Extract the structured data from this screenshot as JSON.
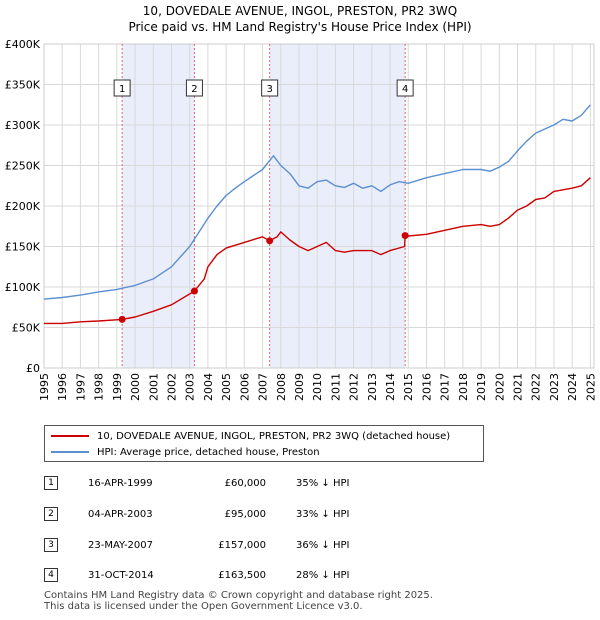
{
  "title_line1": "10, DOVEDALE AVENUE, INGOL, PRESTON, PR2 3WQ",
  "title_line2": "Price paid vs. HM Land Registry's House Price Index (HPI)",
  "legend": {
    "property": "10, DOVEDALE AVENUE, INGOL, PRESTON, PR2 3WQ (detached house)",
    "hpi": "HPI: Average price, detached house, Preston"
  },
  "colors": {
    "property": "#cc0000",
    "hpi": "#5b8fd1",
    "shade": "#e9eefa",
    "vline": "#e06666",
    "grid": "#d9d9d9"
  },
  "transactions": [
    {
      "num": "1",
      "date": "16-APR-1999",
      "price": "£60,000",
      "hpi_diff": "35% ↓ HPI"
    },
    {
      "num": "2",
      "date": "04-APR-2003",
      "price": "£95,000",
      "hpi_diff": "33% ↓ HPI"
    },
    {
      "num": "3",
      "date": "23-MAY-2007",
      "price": "£157,000",
      "hpi_diff": "36% ↓ HPI"
    },
    {
      "num": "4",
      "date": "31-OCT-2014",
      "price": "£163,500",
      "hpi_diff": "28% ↓ HPI"
    }
  ],
  "footer": {
    "line1": "Contains HM Land Registry data © Crown copyright and database right 2025.",
    "line2": "This data is licensed under the Open Government Licence v3.0."
  },
  "chart_data": {
    "type": "line",
    "xlim": [
      1995,
      2025.2
    ],
    "ylim": [
      0,
      400000
    ],
    "y_ticks": [
      0,
      50000,
      100000,
      150000,
      200000,
      250000,
      300000,
      350000,
      400000
    ],
    "y_tick_labels": [
      "£0",
      "£50K",
      "£100K",
      "£150K",
      "£200K",
      "£250K",
      "£300K",
      "£350K",
      "£400K"
    ],
    "x_ticks": [
      1995,
      1996,
      1997,
      1998,
      1999,
      2000,
      2001,
      2002,
      2003,
      2004,
      2005,
      2006,
      2007,
      2008,
      2009,
      2010,
      2011,
      2012,
      2013,
      2014,
      2015,
      2016,
      2017,
      2018,
      2019,
      2020,
      2021,
      2022,
      2023,
      2024,
      2025
    ],
    "x_tick_labels": [
      "1995",
      "1996",
      "1997",
      "1998",
      "1999",
      "2000",
      "2001",
      "2002",
      "2003",
      "2004",
      "2005",
      "2006",
      "2007",
      "2008",
      "2009",
      "2010",
      "2011",
      "2012",
      "2013",
      "2014",
      "2015",
      "2016",
      "2017",
      "2018",
      "2019",
      "2020",
      "2021",
      "2022",
      "2023",
      "2024",
      "2025"
    ],
    "shaded_ranges": [
      [
        1999.29,
        2003.26
      ],
      [
        2007.39,
        2014.83
      ]
    ],
    "sale_markers": [
      {
        "label": "1",
        "x": 1999.29,
        "y": 60000
      },
      {
        "label": "2",
        "x": 2003.26,
        "y": 95000
      },
      {
        "label": "3",
        "x": 2007.39,
        "y": 157000
      },
      {
        "label": "4",
        "x": 2014.83,
        "y": 163500
      }
    ],
    "series": [
      {
        "name": "10, DOVEDALE AVENUE, INGOL, PRESTON, PR2 3WQ (detached house)",
        "x": [
          1995,
          1996,
          1997,
          1998,
          1999.29,
          2000,
          2001,
          2002,
          2003.26,
          2003.8,
          2004,
          2004.5,
          2005,
          2006,
          2007,
          2007.39,
          2007.8,
          2008,
          2008.5,
          2009,
          2009.5,
          2010,
          2010.5,
          2011,
          2011.5,
          2012,
          2013,
          2013.5,
          2014,
          2014.8,
          2014.83,
          2015,
          2016,
          2017,
          2018,
          2019,
          2019.5,
          2020,
          2020.5,
          2021,
          2021.5,
          2022,
          2022.5,
          2023,
          2023.5,
          2024,
          2024.5,
          2025
        ],
        "y": [
          55000,
          55000,
          57000,
          58000,
          60000,
          63000,
          70000,
          78000,
          95000,
          110000,
          125000,
          140000,
          148000,
          155000,
          162000,
          157000,
          162000,
          168000,
          158000,
          150000,
          145000,
          150000,
          155000,
          145000,
          143000,
          145000,
          145000,
          140000,
          145000,
          150000,
          163500,
          163000,
          165000,
          170000,
          175000,
          177000,
          175000,
          177000,
          185000,
          195000,
          200000,
          208000,
          210000,
          218000,
          220000,
          222000,
          225000,
          235000
        ]
      },
      {
        "name": "HPI: Average price, detached house, Preston",
        "x": [
          1995,
          1996,
          1997,
          1998,
          1999,
          2000,
          2001,
          2002,
          2003,
          2004,
          2004.5,
          2005,
          2005.5,
          2006,
          2007,
          2007.6,
          2008,
          2008.5,
          2009,
          2009.5,
          2010,
          2010.5,
          2011,
          2011.5,
          2012,
          2012.5,
          2013,
          2013.5,
          2014,
          2014.5,
          2015,
          2016,
          2017,
          2018,
          2019,
          2019.5,
          2020,
          2020.5,
          2021,
          2021.5,
          2022,
          2022.5,
          2023,
          2023.5,
          2024,
          2024.5,
          2025
        ],
        "y": [
          85000,
          87000,
          90000,
          94000,
          97000,
          102000,
          110000,
          125000,
          150000,
          185000,
          200000,
          213000,
          222000,
          230000,
          245000,
          262000,
          250000,
          240000,
          225000,
          222000,
          230000,
          232000,
          225000,
          223000,
          228000,
          222000,
          225000,
          218000,
          226000,
          230000,
          228000,
          235000,
          240000,
          245000,
          245000,
          243000,
          248000,
          255000,
          268000,
          280000,
          290000,
          295000,
          300000,
          307000,
          305000,
          312000,
          325000
        ]
      }
    ]
  }
}
